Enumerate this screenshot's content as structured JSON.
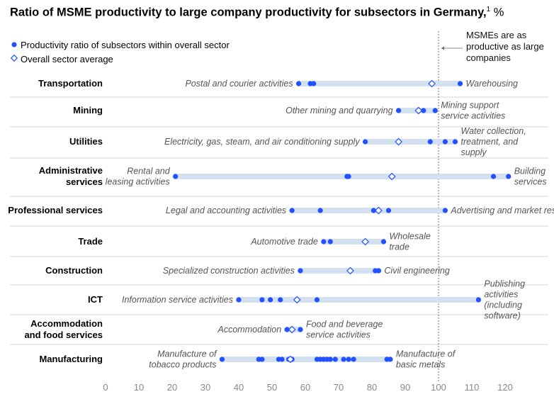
{
  "title": "Ratio of MSME productivity to large company productivity for subsectors in Germany,",
  "title_sup": "1",
  "title_unit": "%",
  "legend": [
    {
      "label": "Productivity ratio of subsectors within overall sector",
      "marker": "filled-dot"
    },
    {
      "label": "Overall sector average",
      "marker": "hollow-diamond"
    }
  ],
  "reference_line": {
    "x": 100,
    "note": "MSMEs are as productive as large companies"
  },
  "colors": {
    "dot": "#2251ff",
    "range": "#d3e0ef",
    "text": "#000000",
    "annotation": "#555555",
    "grid": "#c8c8c8"
  },
  "chart_data": {
    "type": "scatter",
    "xlim": [
      0,
      120
    ],
    "xticks": [
      0,
      10,
      20,
      30,
      40,
      50,
      60,
      70,
      80,
      90,
      100,
      110,
      120
    ],
    "grid": false,
    "legend_position": "top-left",
    "sectors": [
      {
        "name": "Transportation",
        "points": [
          58,
          61.5,
          62.5,
          106.5
        ],
        "average": 98,
        "left_label": "Postal and courier activities",
        "right_label": "Warehousing"
      },
      {
        "name": "Mining",
        "points": [
          88,
          95.5,
          99
        ],
        "average": 94,
        "left_label": "Other mining and quarrying",
        "right_label": "Mining support service activities"
      },
      {
        "name": "Utilities",
        "points": [
          78,
          97.5,
          102,
          105
        ],
        "average": 88,
        "left_label": "Electricity, gas, steam, and air conditioning supply",
        "right_label": "Water collection, treatment, and supply"
      },
      {
        "name": "Administrative services",
        "points": [
          21,
          72.5,
          73,
          86,
          116.5,
          121
        ],
        "average": 86,
        "left_label": "Rental and leasing activities",
        "right_label": "Building services"
      },
      {
        "name": "Professional services",
        "points": [
          56,
          64.5,
          80.5,
          85,
          102
        ],
        "average": 82,
        "left_label": "Legal and accounting activities",
        "right_label": "Advertising and market research"
      },
      {
        "name": "Trade",
        "points": [
          65.5,
          67.5,
          83.5
        ],
        "average": 78,
        "left_label": "Automotive trade",
        "right_label": "Wholesale trade"
      },
      {
        "name": "Construction",
        "points": [
          58.5,
          81,
          82
        ],
        "average": 73.5,
        "left_label": "Specialized construction activities",
        "right_label": "Civil engineering"
      },
      {
        "name": "ICT",
        "points": [
          40,
          47,
          49.5,
          52.5,
          63.5,
          112
        ],
        "average": 57.5,
        "left_label": "Information service activities",
        "right_label": "Publishing activities (including software)"
      },
      {
        "name": "Accommodation and food services",
        "points": [
          54.5,
          58.5
        ],
        "average": 56,
        "left_label": "Accommodation",
        "right_label": "Food and beverage service activities"
      },
      {
        "name": "Manufacturing",
        "points": [
          35,
          46,
          47,
          52,
          53,
          55,
          55.5,
          56,
          63.5,
          64.5,
          65.5,
          66.5,
          67.5,
          69,
          71.5,
          73,
          74.5,
          84.5,
          85.5
        ],
        "average": 55.5,
        "left_label": "Manufacture of tobacco products",
        "right_label": "Manufacture of basic metals"
      }
    ]
  }
}
